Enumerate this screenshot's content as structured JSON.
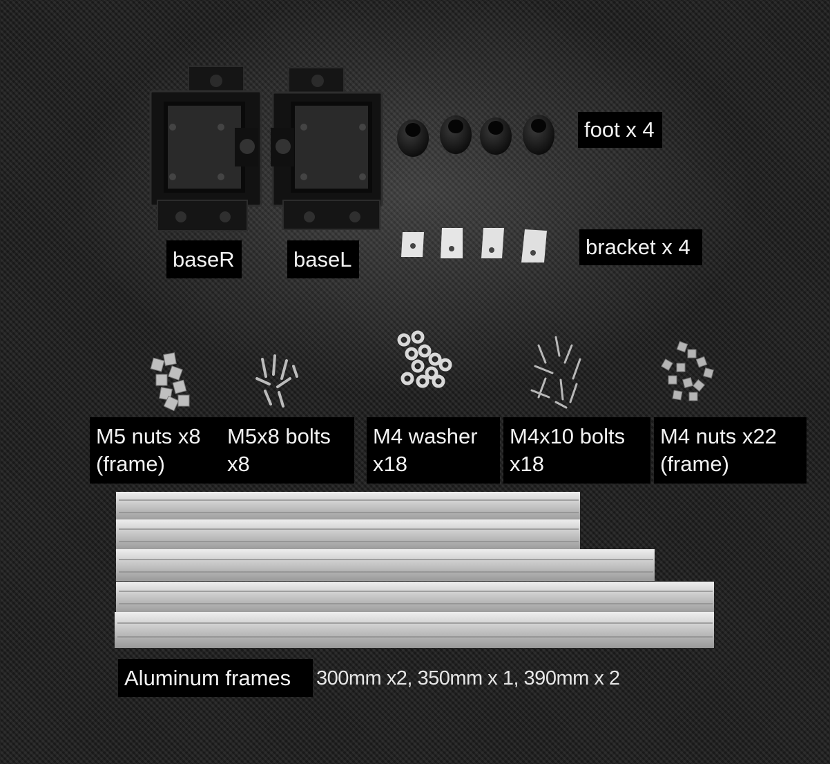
{
  "labels": {
    "base_r": "baseR",
    "base_l": "baseL",
    "foot": "foot x 4",
    "bracket": "bracket x 4",
    "m5_nuts": "M5 nuts x8\n(frame)",
    "m5x8_bolts": "M5x8 bolts\nx8",
    "m4_washer": "M4 washer\nx18",
    "m4x10_bolts": "M4x10 bolts\nx18",
    "m4_nuts": "M4 nuts x22\n(frame)",
    "aluminum_frames": "Aluminum frames",
    "frame_lengths": "300mm x2, 350mm x 1, 390mm x 2"
  },
  "colors": {
    "background": "#1e1e1e",
    "label_background": "#000000",
    "label_text": "#f2f2f2",
    "printed_part": "#141414",
    "aluminum": "#c9c9c9",
    "hardware": "#bdbdbd"
  }
}
